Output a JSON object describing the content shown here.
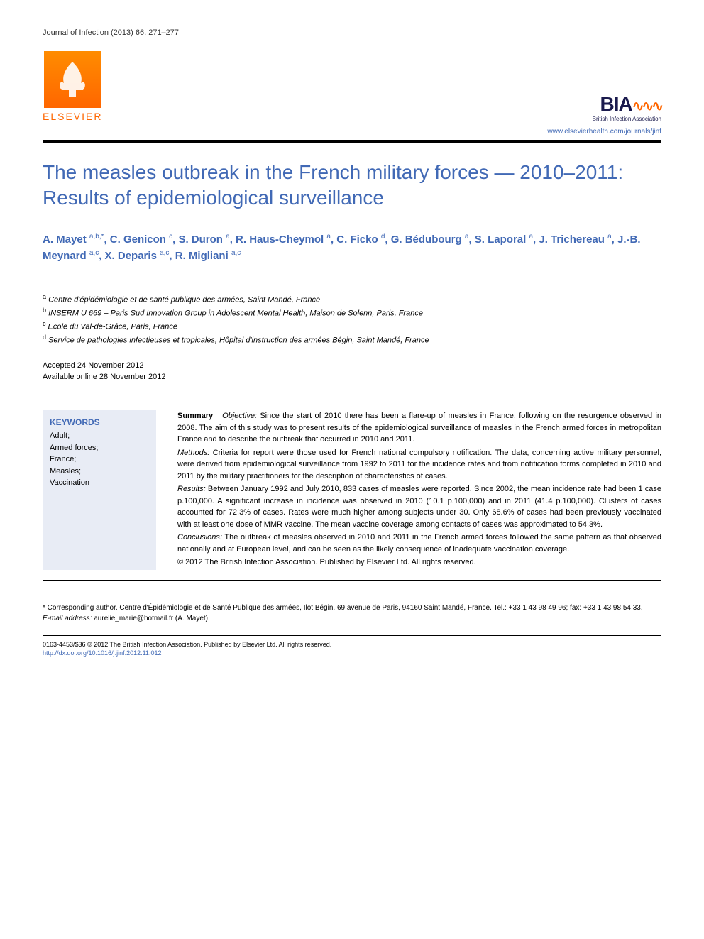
{
  "journal_header": "Journal of Infection (2013) 66, 271–277",
  "logos": {
    "elsevier_text": "ELSEVIER",
    "bia_text": "BIA",
    "bia_subtitle": "British Infection Association"
  },
  "journal_url": "www.elsevierhealth.com/journals/jinf",
  "title": "The measles outbreak in the French military forces — 2010–2011: Results of epidemiological surveillance",
  "authors_html": "A. Mayet <sup>a,b,*</sup>, C. Genicon <sup>c</sup>, S. Duron <sup>a</sup>, R. Haus-Cheymol <sup>a</sup>, C. Ficko <sup>d</sup>, G. Bédubourg <sup>a</sup>, S. Laporal <sup>a</sup>, J. Trichereau <sup>a</sup>, J.-B. Meynard <sup>a,c</sup>, X. Deparis <sup>a,c</sup>, R. Migliani <sup>a,c</sup>",
  "affiliations": [
    {
      "key": "a",
      "text": "Centre d'épidémiologie et de santé publique des armées, Saint Mandé, France"
    },
    {
      "key": "b",
      "text": "INSERM U 669 – Paris Sud Innovation Group in Adolescent Mental Health, Maison de Solenn, Paris, France"
    },
    {
      "key": "c",
      "text": "Ecole du Val-de-Grâce, Paris, France"
    },
    {
      "key": "d",
      "text": "Service de pathologies infectieuses et tropicales, Hôpital d'instruction des armées Bégin, Saint Mandé, France"
    }
  ],
  "dates": {
    "accepted": "Accepted 24 November 2012",
    "online": "Available online 28 November 2012"
  },
  "keywords_heading": "KEYWORDS",
  "keywords": [
    "Adult;",
    "Armed forces;",
    "France;",
    "Measles;",
    "Vaccination"
  ],
  "abstract": {
    "summary_label": "Summary",
    "objective_label": "Objective:",
    "objective_text": " Since the start of 2010 there has been a flare-up of measles in France, following on the resurgence observed in 2008. The aim of this study was to present results of the epidemiological surveillance of measles in the French armed forces in metropolitan France and to describe the outbreak that occurred in 2010 and 2011.",
    "methods_label": "Methods:",
    "methods_text": " Criteria for report were those used for French national compulsory notification. The data, concerning active military personnel, were derived from epidemiological surveillance from 1992 to 2011 for the incidence rates and from notification forms completed in 2010 and 2011 by the military practitioners for the description of characteristics of cases.",
    "results_label": "Results:",
    "results_text": " Between January 1992 and July 2010, 833 cases of measles were reported. Since 2002, the mean incidence rate had been 1 case p.100,000. A significant increase in incidence was observed in 2010 (10.1 p.100,000) and in 2011 (41.4 p.100,000). Clusters of cases accounted for 72.3% of cases. Rates were much higher among subjects under 30. Only 68.6% of cases had been previously vaccinated with at least one dose of MMR vaccine. The mean vaccine coverage among contacts of cases was approximated to 54.3%.",
    "conclusions_label": "Conclusions:",
    "conclusions_text": " The outbreak of measles observed in 2010 and 2011 in the French armed forces followed the same pattern as that observed nationally and at European level, and can be seen as the likely consequence of inadequate vaccination coverage.",
    "copyright": "© 2012 The British Infection Association. Published by Elsevier Ltd. All rights reserved."
  },
  "footnotes": {
    "corresponding": "* Corresponding author. Centre d'Épidémiologie et de Santé Publique des armées, Ilot Bégin, 69 avenue de Paris, 94160 Saint Mandé, France. Tel.: +33 1 43 98 49 96; fax: +33 1 43 98 54 33.",
    "email_label": "E-mail address:",
    "email": " aurelie_marie@hotmail.fr (A. Mayet)."
  },
  "bottom": {
    "line1": "0163-4453/$36 © 2012 The British Infection Association. Published by Elsevier Ltd. All rights reserved.",
    "doi": "http://dx.doi.org/10.1016/j.jinf.2012.11.012"
  },
  "colors": {
    "link_blue": "#4169b5",
    "elsevier_orange": "#ff6600",
    "bia_navy": "#1a1a4d",
    "keywords_bg": "#e8ecf5"
  }
}
